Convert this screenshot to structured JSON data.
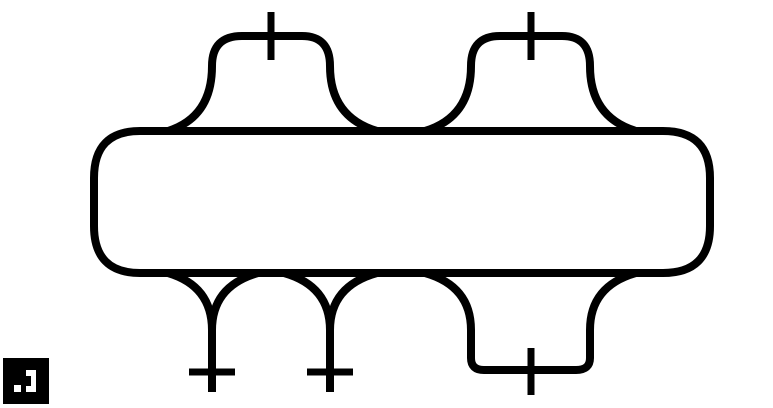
{
  "diagram": {
    "kind": "track-layout",
    "colors": {
      "background": "#ffffff",
      "track": "#000000",
      "badge_background": "#000000",
      "badge_glyph": "#ffffff"
    },
    "loops": {
      "main_loop": "main-loop",
      "upper_sidings": [
        "upper-siding-left",
        "upper-siding-right"
      ],
      "lower_spurs": [
        "lower-spur-left",
        "lower-spur-middle"
      ],
      "lower_sidings": [
        "lower-siding-right"
      ]
    },
    "endpoints": {
      "count": 5,
      "icon": "buffer-stop-icon"
    },
    "corner_badge": {
      "icon": "corner-badge-icon"
    }
  }
}
